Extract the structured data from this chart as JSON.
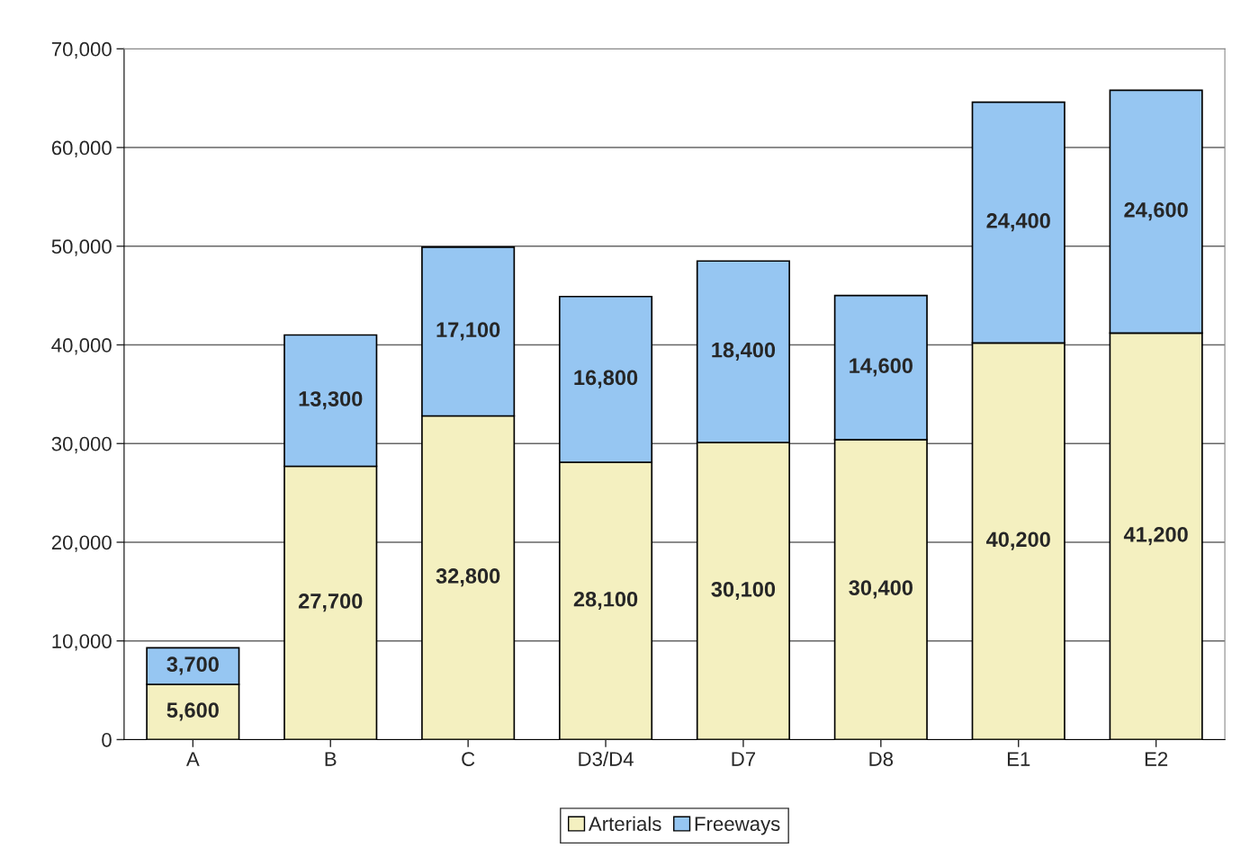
{
  "chart_data": {
    "type": "bar",
    "stacked": true,
    "categories": [
      "A",
      "B",
      "C",
      "D3/D4",
      "D7",
      "D8",
      "E1",
      "E2"
    ],
    "series": [
      {
        "name": "Arterials",
        "color": "#f4f0c0",
        "values": [
          5600,
          27700,
          32800,
          28100,
          30100,
          30400,
          40200,
          41200
        ],
        "value_labels": [
          "5,600",
          "27,700",
          "32,800",
          "28,100",
          "30,100",
          "30,400",
          "40,200",
          "41,200"
        ]
      },
      {
        "name": "Freeways",
        "color": "#96c6f2",
        "values": [
          3700,
          13300,
          17100,
          16800,
          18400,
          14600,
          24400,
          24600
        ],
        "value_labels": [
          "3,700",
          "13,300",
          "17,100",
          "16,800",
          "18,400",
          "14,600",
          "24,400",
          "24,600"
        ]
      }
    ],
    "ylim": [
      0,
      70000
    ],
    "yticks": [
      {
        "value": 0,
        "label": "0"
      },
      {
        "value": 10000,
        "label": "10,000"
      },
      {
        "value": 20000,
        "label": "20,000"
      },
      {
        "value": 30000,
        "label": "30,000"
      },
      {
        "value": 40000,
        "label": "40,000"
      },
      {
        "value": 50000,
        "label": "50,000"
      },
      {
        "value": 60000,
        "label": "60,000"
      },
      {
        "value": 70000,
        "label": "70,000"
      }
    ],
    "grid": "y",
    "legend": "bottom"
  }
}
